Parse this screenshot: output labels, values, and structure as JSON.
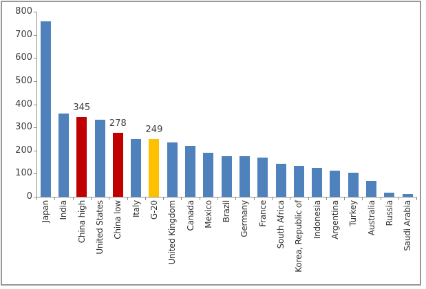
{
  "colors": {
    "blue": "#4f81bd",
    "red": "#c00000",
    "yellow": "#ffc000",
    "axis": "#8c8c8c",
    "text": "#3b3b3b",
    "frame_border": "#979797"
  },
  "chart_data": {
    "type": "bar",
    "title": "",
    "xlabel": "",
    "ylabel": "",
    "ylim": [
      0,
      800
    ],
    "yticks": [
      0,
      100,
      200,
      300,
      400,
      500,
      600,
      700,
      800
    ],
    "grid": false,
    "legend": null,
    "categories": [
      "Japan",
      "India",
      "China high",
      "United States",
      "China low",
      "Italy",
      "G-20",
      "United Kingdom",
      "Canada",
      "Mexico",
      "Brazil",
      "Germany",
      "France",
      "South Africa",
      "Korea, Republic of",
      "Indonesia",
      "Argentina",
      "Turkey",
      "Australia",
      "Russia",
      "Saudi Arabia"
    ],
    "bars": [
      {
        "label": "Japan",
        "value": 758,
        "color": "blue",
        "annotation": ""
      },
      {
        "label": "India",
        "value": 359,
        "color": "blue",
        "annotation": ""
      },
      {
        "label": "China high",
        "value": 345,
        "color": "red",
        "annotation": "345"
      },
      {
        "label": "United States",
        "value": 333,
        "color": "blue",
        "annotation": ""
      },
      {
        "label": "China low",
        "value": 278,
        "color": "red",
        "annotation": "278"
      },
      {
        "label": "Italy",
        "value": 251,
        "color": "blue",
        "annotation": ""
      },
      {
        "label": "G-20",
        "value": 249,
        "color": "yellow",
        "annotation": "249"
      },
      {
        "label": "United Kingdom",
        "value": 235,
        "color": "blue",
        "annotation": ""
      },
      {
        "label": "Canada",
        "value": 221,
        "color": "blue",
        "annotation": ""
      },
      {
        "label": "Mexico",
        "value": 191,
        "color": "blue",
        "annotation": ""
      },
      {
        "label": "Brazil",
        "value": 176,
        "color": "blue",
        "annotation": ""
      },
      {
        "label": "Germany",
        "value": 174,
        "color": "blue",
        "annotation": ""
      },
      {
        "label": "France",
        "value": 170,
        "color": "blue",
        "annotation": ""
      },
      {
        "label": "South Africa",
        "value": 143,
        "color": "blue",
        "annotation": ""
      },
      {
        "label": "Korea, Republic of",
        "value": 133,
        "color": "blue",
        "annotation": ""
      },
      {
        "label": "Indonesia",
        "value": 124,
        "color": "blue",
        "annotation": ""
      },
      {
        "label": "Argentina",
        "value": 113,
        "color": "blue",
        "annotation": ""
      },
      {
        "label": "Turkey",
        "value": 104,
        "color": "blue",
        "annotation": ""
      },
      {
        "label": "Australia",
        "value": 69,
        "color": "blue",
        "annotation": ""
      },
      {
        "label": "Russia",
        "value": 19,
        "color": "blue",
        "annotation": ""
      },
      {
        "label": "Saudi Arabia",
        "value": 11,
        "color": "blue",
        "annotation": ""
      }
    ]
  }
}
